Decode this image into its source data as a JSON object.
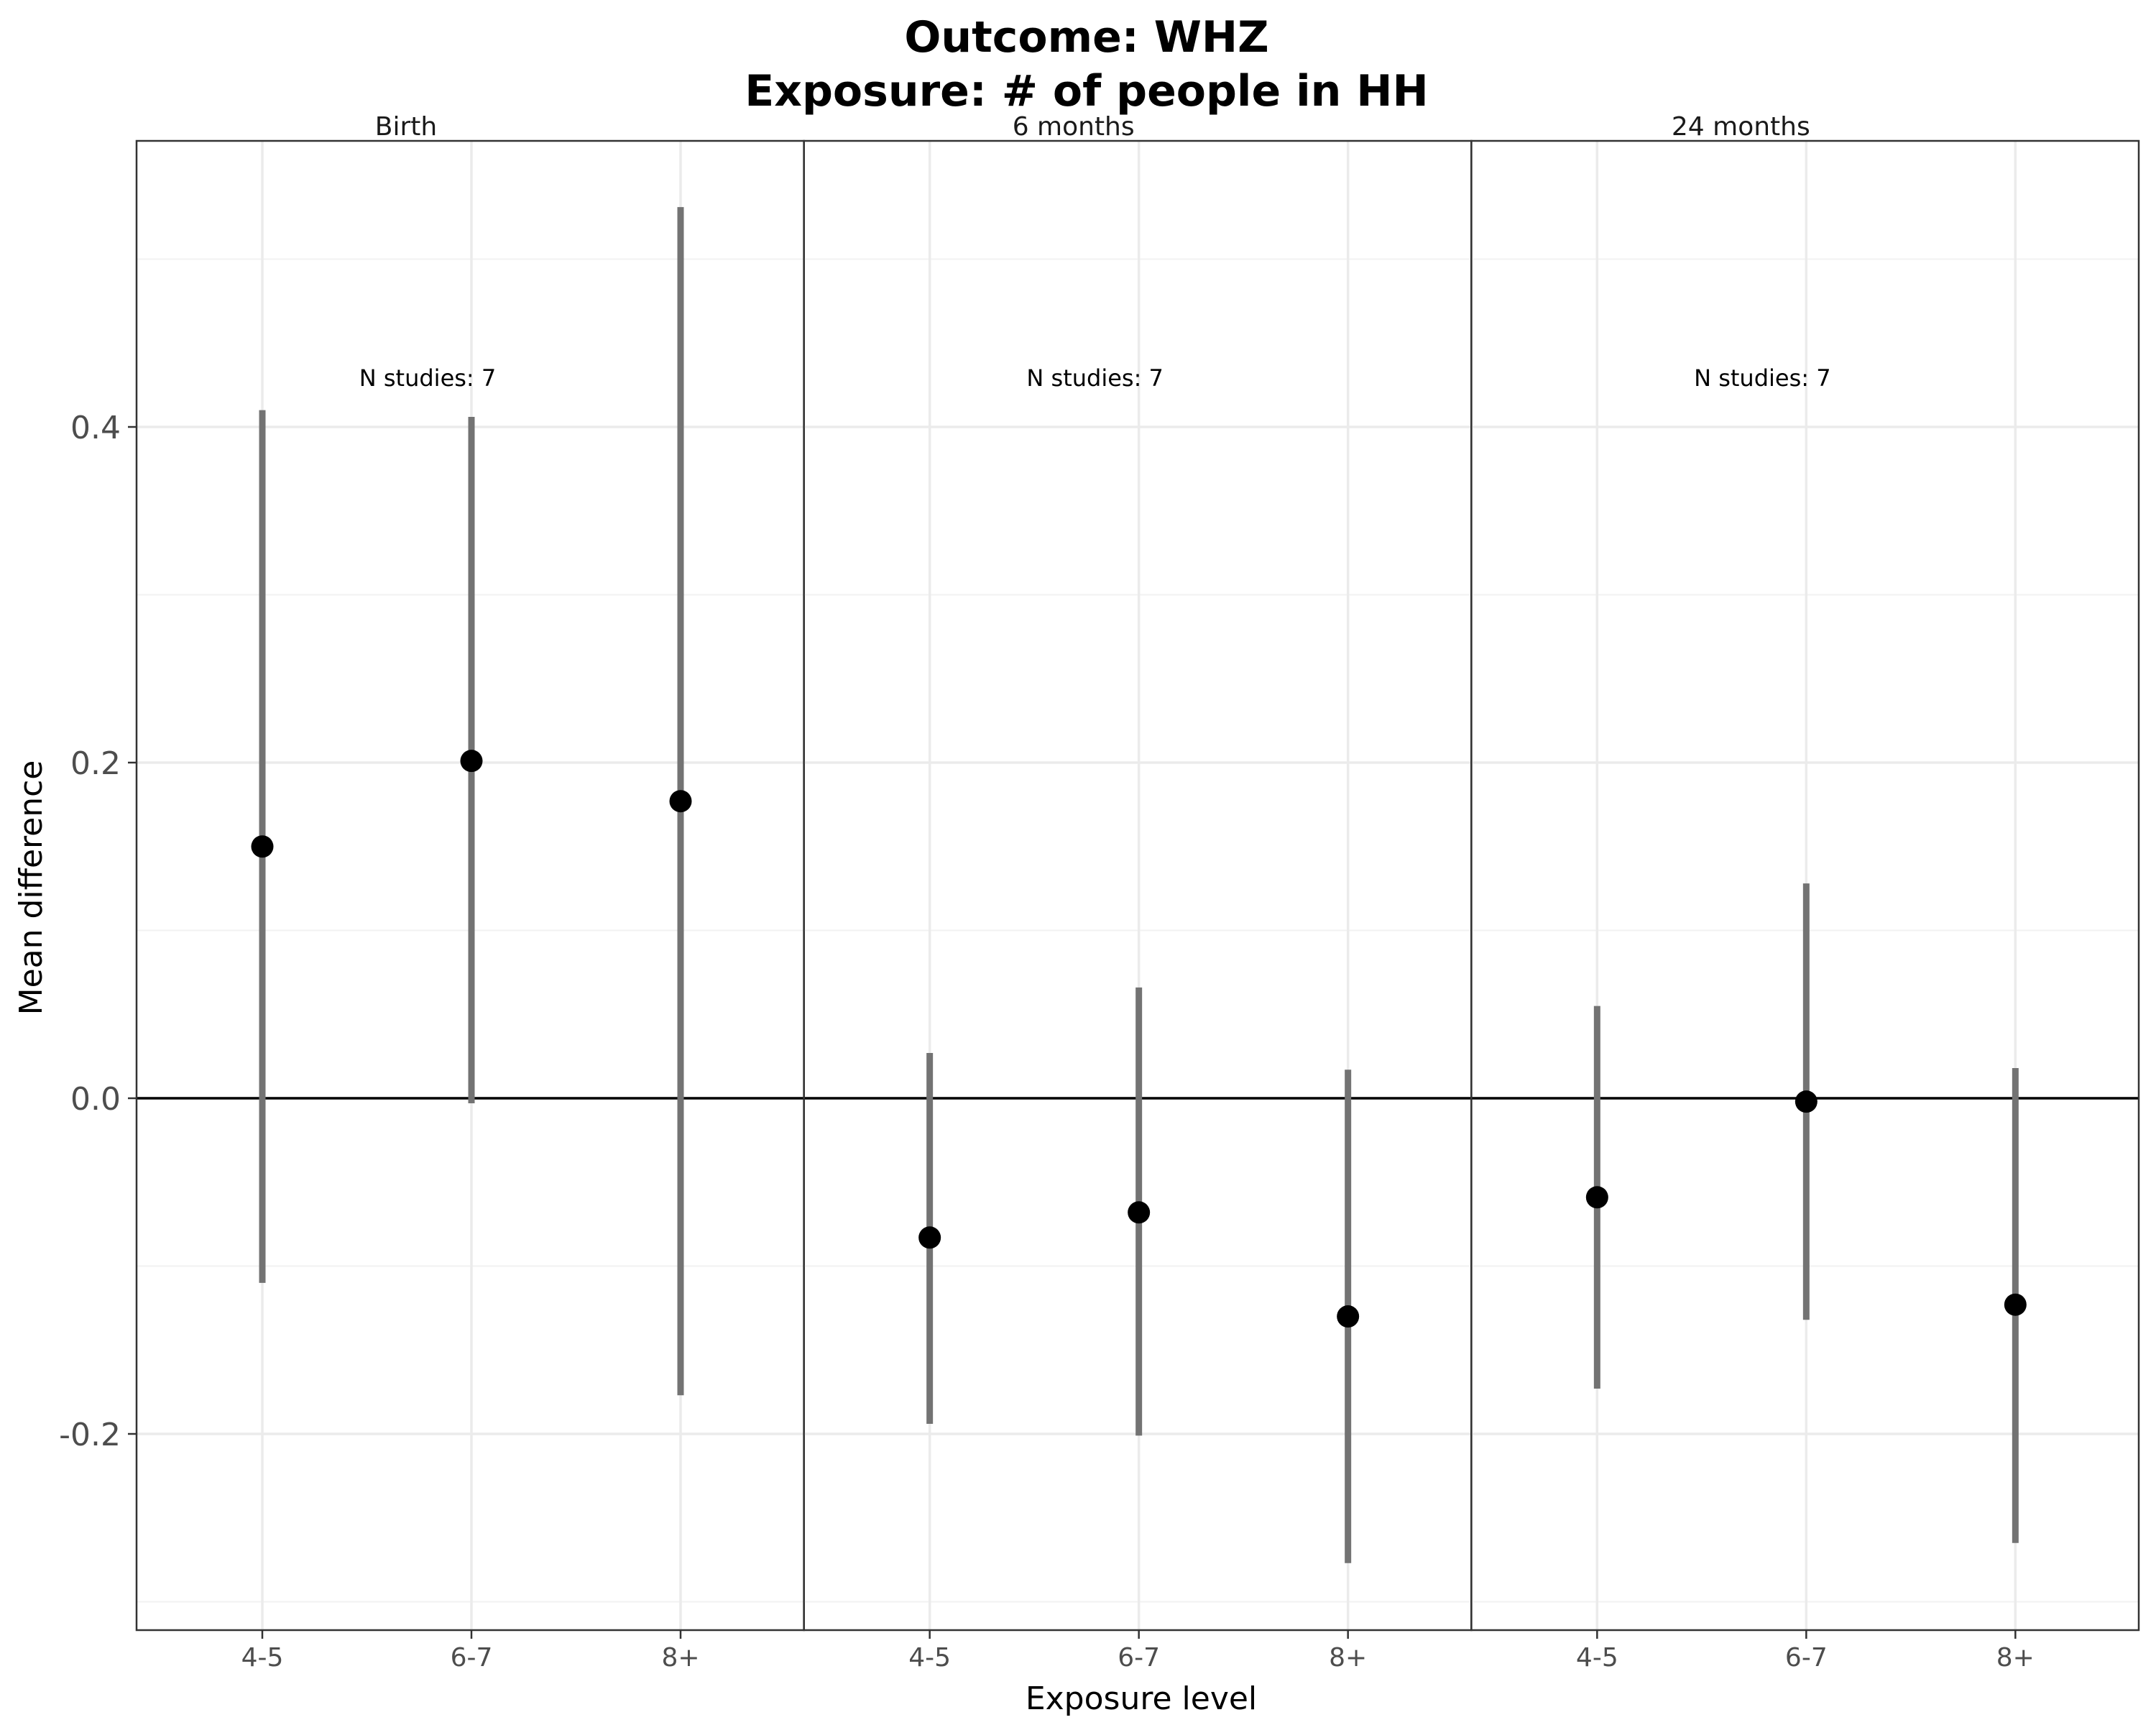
{
  "chart_data": {
    "type": "scatter",
    "title_line1": "Outcome: WHZ",
    "title_line2": "Exposure: # of people in HH",
    "xlabel": "Exposure level",
    "ylabel": "Mean difference",
    "ylim": [
      -0.3,
      0.56
    ],
    "y_ticks": [
      -0.2,
      0.0,
      0.2,
      0.4
    ],
    "y_tick_labels": [
      "-0.2",
      "0.0",
      "0.2",
      "0.4"
    ],
    "reference_line": 0,
    "grid": true,
    "categories": [
      "4-5",
      "6-7",
      "8+"
    ],
    "panels": [
      {
        "label": "Birth",
        "annotation": "N studies: 7",
        "points": [
          {
            "x": "4-5",
            "estimate": 0.15,
            "lower": -0.11,
            "upper": 0.41
          },
          {
            "x": "6-7",
            "estimate": 0.201,
            "lower": -0.003,
            "upper": 0.406
          },
          {
            "x": "8+",
            "estimate": 0.177,
            "lower": -0.177,
            "upper": 0.531
          }
        ]
      },
      {
        "label": "6 months",
        "annotation": "N studies: 7",
        "points": [
          {
            "x": "4-5",
            "estimate": -0.083,
            "lower": -0.194,
            "upper": 0.027
          },
          {
            "x": "6-7",
            "estimate": -0.068,
            "lower": -0.201,
            "upper": 0.066
          },
          {
            "x": "8+",
            "estimate": -0.13,
            "lower": -0.277,
            "upper": 0.017
          }
        ]
      },
      {
        "label": "24 months",
        "annotation": "N studies: 7",
        "points": [
          {
            "x": "4-5",
            "estimate": -0.059,
            "lower": -0.173,
            "upper": 0.055
          },
          {
            "x": "6-7",
            "estimate": -0.002,
            "lower": -0.132,
            "upper": 0.128
          },
          {
            "x": "8+",
            "estimate": -0.123,
            "lower": -0.265,
            "upper": 0.018
          }
        ]
      }
    ],
    "colors": {
      "point": "#000000",
      "errorbar": "#737373",
      "grid_major": "#ebebeb",
      "grid_minor": "#f2f2f2",
      "panel_border": "#333333",
      "reference_line": "#000000"
    }
  }
}
